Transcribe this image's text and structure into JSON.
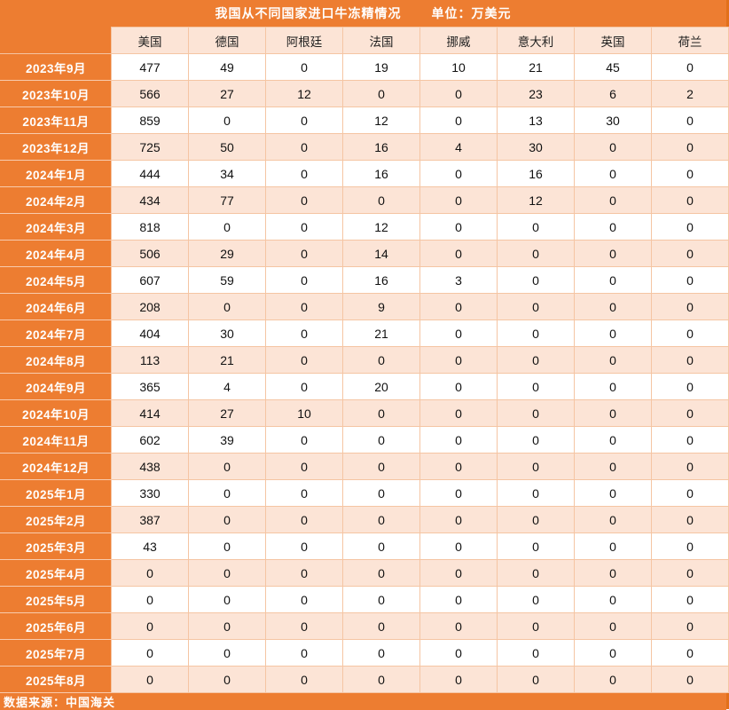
{
  "title": {
    "text": "我国从不同国家进口牛冻精情况",
    "unit_label": "单位：万美元"
  },
  "footer": {
    "source_label": "数据来源：中国海关"
  },
  "colors": {
    "accent_orange": "#ED7D31",
    "row_alt_fill": "#FCE4D6",
    "cell_border": "#F5C5A3",
    "title_text": "#FFFFFF",
    "data_text": "#111111"
  },
  "chart_data": {
    "type": "table",
    "title": "我国从不同国家进口牛冻精情况",
    "unit": "万美元",
    "source": "数据来源：中国海关",
    "row_header_label": "",
    "categories": [
      "2023年9月",
      "2023年10月",
      "2023年11月",
      "2023年12月",
      "2024年1月",
      "2024年2月",
      "2024年3月",
      "2024年4月",
      "2024年5月",
      "2024年6月",
      "2024年7月",
      "2024年8月",
      "2024年9月",
      "2024年10月",
      "2024年11月",
      "2024年12月",
      "2025年1月",
      "2025年2月",
      "2025年3月",
      "2025年4月",
      "2025年5月",
      "2025年6月",
      "2025年7月",
      "2025年8月"
    ],
    "series": [
      {
        "name": "美国",
        "values": [
          477,
          566,
          859,
          725,
          444,
          434,
          818,
          506,
          607,
          208,
          404,
          113,
          365,
          414,
          602,
          438,
          330,
          387,
          43,
          0,
          0,
          0,
          0,
          0
        ]
      },
      {
        "name": "德国",
        "values": [
          49,
          27,
          0,
          50,
          34,
          77,
          0,
          29,
          59,
          0,
          30,
          21,
          4,
          27,
          39,
          0,
          0,
          0,
          0,
          0,
          0,
          0,
          0,
          0
        ]
      },
      {
        "name": "阿根廷",
        "values": [
          0,
          12,
          0,
          0,
          0,
          0,
          0,
          0,
          0,
          0,
          0,
          0,
          0,
          10,
          0,
          0,
          0,
          0,
          0,
          0,
          0,
          0,
          0,
          0
        ]
      },
      {
        "name": "法国",
        "values": [
          19,
          0,
          12,
          16,
          16,
          0,
          12,
          14,
          16,
          9,
          21,
          0,
          20,
          0,
          0,
          0,
          0,
          0,
          0,
          0,
          0,
          0,
          0,
          0
        ]
      },
      {
        "name": "挪威",
        "values": [
          10,
          0,
          0,
          4,
          0,
          0,
          0,
          0,
          3,
          0,
          0,
          0,
          0,
          0,
          0,
          0,
          0,
          0,
          0,
          0,
          0,
          0,
          0,
          0
        ]
      },
      {
        "name": "意大利",
        "values": [
          21,
          23,
          13,
          30,
          16,
          12,
          0,
          0,
          0,
          0,
          0,
          0,
          0,
          0,
          0,
          0,
          0,
          0,
          0,
          0,
          0,
          0,
          0,
          0
        ]
      },
      {
        "name": "英国",
        "values": [
          45,
          6,
          30,
          0,
          0,
          0,
          0,
          0,
          0,
          0,
          0,
          0,
          0,
          0,
          0,
          0,
          0,
          0,
          0,
          0,
          0,
          0,
          0,
          0
        ]
      },
      {
        "name": "荷兰",
        "values": [
          0,
          2,
          0,
          0,
          0,
          0,
          0,
          0,
          0,
          0,
          0,
          0,
          0,
          0,
          0,
          0,
          0,
          0,
          0,
          0,
          0,
          0,
          0,
          0
        ]
      }
    ]
  }
}
